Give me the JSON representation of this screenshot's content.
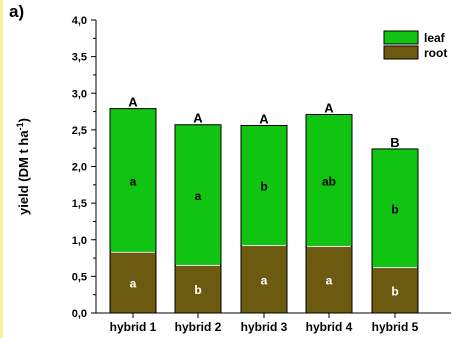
{
  "panel_label": "a)",
  "chart_data": {
    "type": "bar",
    "stacked": true,
    "categories": [
      "hybrid 1",
      "hybrid 2",
      "hybrid 3",
      "hybrid 4",
      "hybrid 5"
    ],
    "series": [
      {
        "name": "root",
        "color": "#6b5a10",
        "values": [
          0.83,
          0.65,
          0.92,
          0.91,
          0.62
        ],
        "labels": [
          "a",
          "b",
          "a",
          "a",
          "b"
        ],
        "label_color": "#ffffff"
      },
      {
        "name": "leaf",
        "color": "#11c411",
        "values": [
          1.96,
          1.92,
          1.64,
          1.8,
          1.62
        ],
        "labels": [
          "a",
          "a",
          "b",
          "ab",
          "b"
        ],
        "label_color": "#000000"
      }
    ],
    "top_labels": [
      "A",
      "A",
      "A",
      "A",
      "B"
    ],
    "ylabel": "yield (DM t ha",
    "ylabel_sup": "-1",
    "ylabel_close": ")",
    "ylim": [
      0,
      4.0
    ],
    "yticks": [
      "0,0",
      "0,5",
      "1,0",
      "1,5",
      "2,0",
      "2,5",
      "3,0",
      "3,5",
      "4,0"
    ],
    "legend": {
      "placement": "top-right",
      "order": [
        "leaf",
        "root"
      ]
    },
    "grid": false
  }
}
